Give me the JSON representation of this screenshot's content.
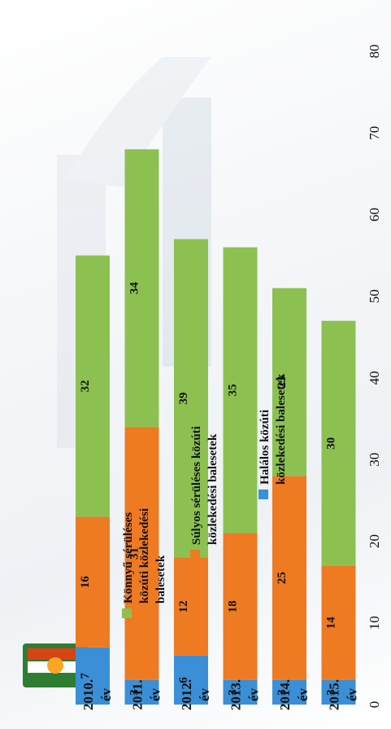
{
  "chart_data": {
    "type": "bar",
    "stacked": true,
    "orientation": "vertical (image rotated 90° clockwise)",
    "categories": [
      [
        "2010.",
        "év"
      ],
      [
        "2011.",
        "év"
      ],
      [
        "2012.",
        "év"
      ],
      [
        "2013.",
        "év"
      ],
      [
        "2014.",
        "év"
      ],
      [
        "2015.",
        "év"
      ]
    ],
    "series": [
      {
        "name": "Halálos közúti közlekedési balesetek",
        "color": "#3a8fd6",
        "values": [
          7,
          3,
          6,
          3,
          3,
          3
        ]
      },
      {
        "name": "Súlyos sérüléses közúti közlekedési balesetek",
        "color": "#ee7a22",
        "values": [
          16,
          31,
          12,
          18,
          25,
          14
        ]
      },
      {
        "name": "Könnyű sérüléses közúti közlekedési balesetek",
        "color": "#8cc152",
        "values": [
          32,
          34,
          39,
          35,
          23,
          30
        ]
      }
    ],
    "legend_lines": [
      [
        "Könnyű sérüléses",
        "közúti közlekedési",
        "balesetek"
      ],
      [
        "Súlyos sérüléses közúti",
        "közlekedési balesetek"
      ],
      [
        "Halálos közúti",
        "közlekedési balesetek"
      ]
    ],
    "y_ticks": [
      "0",
      "10",
      "20",
      "30",
      "40",
      "50",
      "60",
      "70",
      "80"
    ],
    "ylim": [
      0,
      80
    ],
    "grid": false,
    "legend_position": "right"
  }
}
